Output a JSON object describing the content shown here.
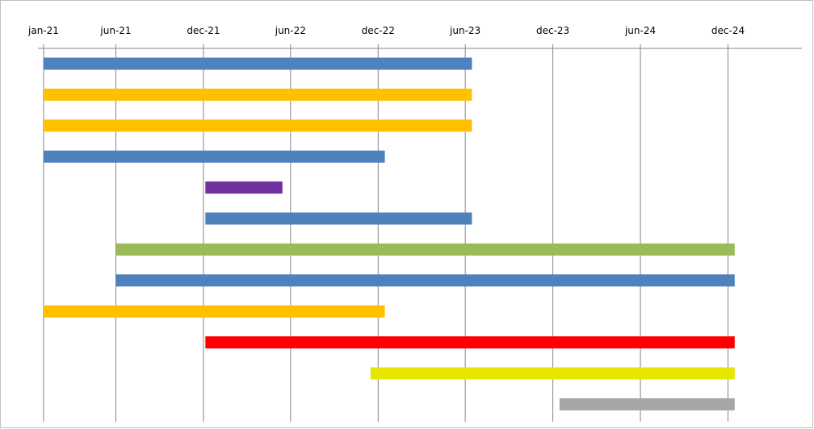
{
  "chart_data": {
    "type": "bar",
    "orientation": "horizontal-gantt",
    "x_axis_position": "top",
    "grid": "vertical",
    "legend": "none",
    "x_ticks": [
      "jan-21",
      "jun-21",
      "dec-21",
      "jun-22",
      "dec-22",
      "jun-23",
      "dec-23",
      "jun-24",
      "dec-24"
    ],
    "x_tick_values": [
      "2021-01-01",
      "2021-06-01",
      "2021-12-01",
      "2022-06-01",
      "2022-12-01",
      "2023-06-01",
      "2023-12-01",
      "2024-06-01",
      "2024-12-01"
    ],
    "xlim": [
      "2021-01-01",
      "2025-05-01"
    ],
    "bars": [
      {
        "start": "2021-01-01",
        "end": "2023-06-15",
        "color": "#4f81bd"
      },
      {
        "start": "2021-01-01",
        "end": "2023-06-15",
        "color": "#ffc000"
      },
      {
        "start": "2021-01-01",
        "end": "2023-06-15",
        "color": "#ffc000"
      },
      {
        "start": "2021-01-01",
        "end": "2022-12-15",
        "color": "#4f81bd"
      },
      {
        "start": "2021-12-05",
        "end": "2022-05-15",
        "color": "#7030a0"
      },
      {
        "start": "2021-12-05",
        "end": "2023-06-15",
        "color": "#4f81bd"
      },
      {
        "start": "2021-06-01",
        "end": "2024-12-15",
        "color": "#9bbb59"
      },
      {
        "start": "2021-06-01",
        "end": "2024-12-15",
        "color": "#4f81bd"
      },
      {
        "start": "2021-01-01",
        "end": "2022-12-15",
        "color": "#ffc000"
      },
      {
        "start": "2021-12-05",
        "end": "2024-12-15",
        "color": "#ff0000"
      },
      {
        "start": "2022-11-15",
        "end": "2024-12-15",
        "color": "#e6e600"
      },
      {
        "start": "2023-12-15",
        "end": "2024-12-15",
        "color": "#a6a6a6"
      }
    ]
  }
}
